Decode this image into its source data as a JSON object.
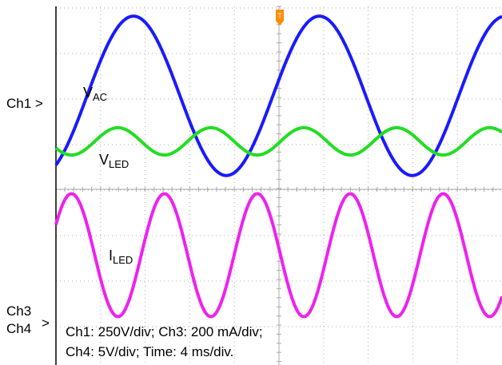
{
  "chart_data": {
    "type": "line",
    "instrument": "oscilloscope",
    "grid": true,
    "x": {
      "unit": "ms",
      "range": [
        0,
        40
      ],
      "per_division": 4,
      "divisions": 10
    },
    "channel_markers": [
      "Ch1 >",
      "Ch3",
      "Ch4"
    ],
    "marker_arrow": ">",
    "trigger_marker": "T",
    "series": [
      {
        "name": "VAC",
        "label_main": "V",
        "label_sub": "AC",
        "channel": "Ch1",
        "color": "#1a1aff",
        "kind": "sine",
        "frequency_hz": 60,
        "amplitude_div": 1.75,
        "offset_div": 0.0,
        "phase_deg": 0
      },
      {
        "name": "VLED",
        "label_main": "V",
        "label_sub": "LED",
        "channel": "Ch4",
        "color": "#22dd22",
        "kind": "sine",
        "frequency_hz": 120,
        "amplitude_div": 0.3,
        "offset_div": -1.0,
        "phase_deg": -90
      },
      {
        "name": "ILED",
        "label_main": "I",
        "label_sub": "LED",
        "channel": "Ch3",
        "color": "#ee22ee",
        "kind": "sine",
        "frequency_hz": 120,
        "amplitude_div": 1.35,
        "offset_div": -3.5,
        "phase_deg": 90
      }
    ],
    "scale_text": [
      "Ch1: 250V/div; Ch3: 200 mA/div;",
      "Ch4: 5V/div; Time: 4 ms/div."
    ]
  },
  "colors": {
    "grid": "#aaaaaa",
    "trigger": "#ff8c00",
    "frame": "#000000"
  }
}
